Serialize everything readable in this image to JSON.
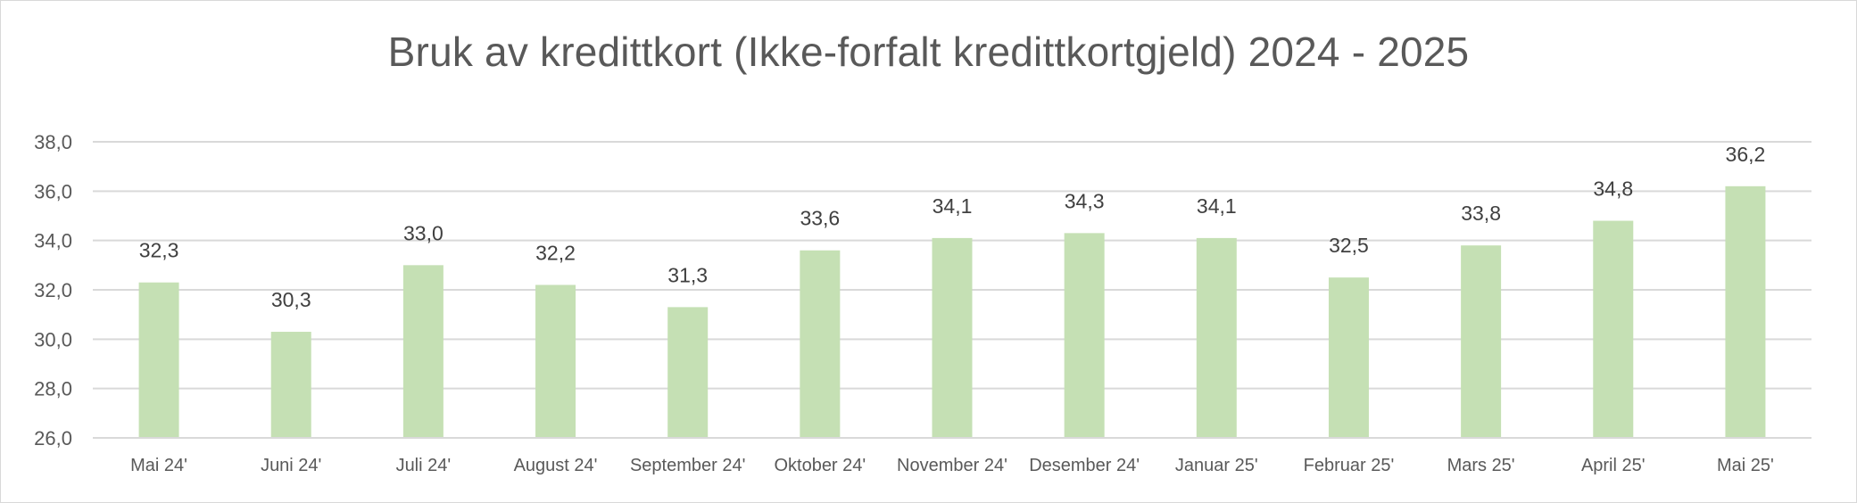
{
  "chart_data": {
    "type": "bar",
    "title": "Bruk av kredittkort (Ikke-forfalt kredittkortgjeld) 2024 - 2025",
    "xlabel": "",
    "ylabel": "",
    "categories": [
      "Mai 24'",
      "Juni 24'",
      "Juli 24'",
      "August 24'",
      "September 24'",
      "Oktober 24'",
      "November 24'",
      "Desember 24'",
      "Januar 25'",
      "Februar 25'",
      "Mars 25'",
      "April 25'",
      "Mai 25'"
    ],
    "values": [
      32.3,
      30.3,
      33.0,
      32.2,
      31.3,
      33.6,
      34.1,
      34.3,
      34.1,
      32.5,
      33.8,
      34.8,
      36.2
    ],
    "data_labels": [
      "32,3",
      "30,3",
      "33,0",
      "32,2",
      "31,3",
      "33,6",
      "34,1",
      "34,3",
      "34,1",
      "32,5",
      "33,8",
      "34,8",
      "36,2"
    ],
    "ylim": [
      26,
      38
    ],
    "yticks": [
      26,
      28,
      30,
      32,
      34,
      36,
      38
    ],
    "ytick_labels": [
      "26,0",
      "28,0",
      "30,0",
      "32,0",
      "34,0",
      "36,0",
      "38,0"
    ],
    "grid": true,
    "legend": "none",
    "colors": {
      "bar": "#c5e0b4",
      "grid": "#d9d9d9",
      "text": "#595959",
      "data_label": "#404040"
    }
  }
}
